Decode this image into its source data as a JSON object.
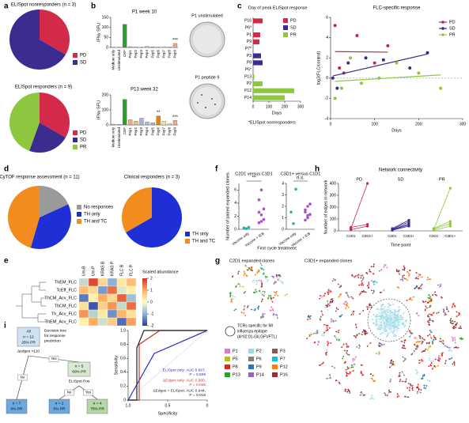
{
  "chart_data": [
    {
      "type": "pie",
      "panel": "a",
      "title": "ELISpot nonresponders (n = 3)",
      "categories": [
        "PD",
        "SD"
      ],
      "values": [
        1,
        2
      ],
      "colors": [
        "#d42a4a",
        "#3a2d8f"
      ]
    },
    {
      "type": "pie",
      "title": "ELISpot responders (n = 9)",
      "categories": [
        "PD",
        "SD",
        "PR"
      ],
      "values": [
        3,
        2,
        4
      ],
      "colors": [
        "#d42a4a",
        "#3a2d8f",
        "#8dc63f"
      ]
    },
    {
      "type": "bar",
      "panel": "b",
      "title": "P1 week 10",
      "ylabel": "IFNγ SFU",
      "categories": [
        "Medium only",
        "Unstimulated",
        "CEF",
        "Pep1",
        "Pep2",
        "Pep3",
        "Pep4",
        "Pep5",
        "Pep6",
        "Pep7",
        "Pep8",
        "Pep9"
      ],
      "values": [
        1,
        1,
        115,
        4,
        3,
        2,
        5,
        3,
        2,
        4,
        3,
        20
      ],
      "bar_colors": [
        "#bbbbbb",
        "#bbbbbb",
        "#2ca02c",
        "#f4a582",
        "#fddbc7",
        "#d1e5f0",
        "#92c5de",
        "#c2a5cf",
        "#a6dba0",
        "#fee08b",
        "#e0e0e0",
        "#f4a582"
      ],
      "ylim": [
        0,
        150
      ],
      "yticks": [
        0,
        50,
        100,
        150
      ],
      "annotations": [
        {
          "text": "***",
          "category": "Pep9"
        }
      ]
    },
    {
      "type": "bar",
      "title": "P13 week 32",
      "ylabel": "IFNγ SFU",
      "categories": [
        "Medium only",
        "Unstimulated",
        "CEF",
        "Pep1",
        "Pep2",
        "Pep3",
        "Pep4",
        "Pep5",
        "Pep6",
        "Pep7",
        "Pep8",
        "Pep9"
      ],
      "values": [
        5,
        4,
        170,
        35,
        25,
        45,
        20,
        15,
        60,
        25,
        10,
        30
      ],
      "bar_colors": [
        "#bbbbbb",
        "#bbbbbb",
        "#2ca02c",
        "#f4a582",
        "#fdb863",
        "#b2abd2",
        "#92c5de",
        "#c2a5cf",
        "#e08214",
        "#fee08b",
        "#e0e0e0",
        "#f4a582"
      ],
      "ylim": [
        0,
        200
      ],
      "yticks": [
        0,
        100,
        200
      ],
      "annotations": [
        {
          "text": "**",
          "category": "Pep6"
        },
        {
          "text": "***",
          "category": "Pep9"
        }
      ]
    },
    {
      "type": "hbar",
      "panel": "c",
      "title": "Day of peak ELISpot response",
      "categories": [
        "P16",
        "P6*",
        "P1",
        "P9",
        "P7*",
        "P3",
        "P8",
        "P5*",
        "P13",
        "P2",
        "P12",
        "P14"
      ],
      "values": [
        60,
        null,
        45,
        40,
        null,
        50,
        60,
        null,
        8,
        60,
        260,
        200
      ],
      "bar_colors": [
        "#d42a4a",
        "#d42a4a",
        "#d42a4a",
        "#d42a4a",
        "#3a2d8f",
        "#3a2d8f",
        "#3a2d8f",
        "#3a2d8f",
        "#8dc63f",
        "#8dc63f",
        "#8dc63f",
        "#8dc63f"
      ],
      "legend": [
        {
          "name": "PD",
          "color": "#d42a4a"
        },
        {
          "name": "SD",
          "color": "#3a2d8f"
        },
        {
          "name": "PR",
          "color": "#8dc63f"
        }
      ],
      "xlabel": "Days",
      "xlim": [
        0,
        300
      ],
      "xticks": [
        0,
        100,
        200,
        300
      ],
      "footnote": "*ELISpot nonresponders"
    },
    {
      "type": "scatter",
      "title": "FLC-specific response",
      "xlabel": "Days",
      "ylabel": "log2(FLC/control)",
      "xlim": [
        0,
        300
      ],
      "xticks": [
        0,
        100,
        200,
        300
      ],
      "ylim": [
        -4,
        6
      ],
      "yticks": [
        -4,
        -2,
        0,
        2,
        4,
        6
      ],
      "series": [
        {
          "name": "PD",
          "color": "#c0264a",
          "x": [
            10,
            20,
            30,
            60,
            100,
            130
          ],
          "values": [
            5.2,
            1,
            0.5,
            4.2,
            1.5,
            3.2
          ]
        },
        {
          "name": "SD",
          "color": "#3b2a8c",
          "x": [
            5,
            15,
            40,
            80,
            120,
            180,
            220
          ],
          "values": [
            0,
            -1,
            1.5,
            2,
            1.8,
            1,
            2.5
          ]
        },
        {
          "name": "PR",
          "color": "#8dc63f",
          "x": [
            10,
            25,
            45,
            70,
            110,
            150,
            200,
            250
          ],
          "values": [
            -2,
            -1,
            2,
            -0.5,
            0,
            1.5,
            0.5,
            -1
          ]
        }
      ]
    },
    {
      "type": "pie",
      "panel": "d",
      "title": "CyTOF response assessment (n = 11)",
      "categories": [
        "No responses",
        "TH only",
        "TH and TC"
      ],
      "values": [
        2,
        4,
        5
      ],
      "colors": [
        "#9a9a9a",
        "#1f2fd6",
        "#f28c1e"
      ]
    },
    {
      "type": "pie",
      "title": "Clinical responders (n = 3)",
      "categories": [
        "TH only",
        "TH and TC"
      ],
      "values": [
        2,
        1
      ],
      "colors": [
        "#1f2fd6",
        "#f28c1e"
      ]
    },
    {
      "type": "heatmap",
      "panel": "e",
      "rows": [
        "ThEM_FLC",
        "TcEff_FLC",
        "ThCM_Acv_FLC",
        "ThCM_FLC",
        "Th_Acv_FLC",
        "ThEM_Acv_FLC"
      ],
      "columns": [
        "Um B",
        "Um P",
        "KRAS B",
        "KRAS P",
        "FLC B",
        "FLC P"
      ],
      "values": [
        [
          -0.5,
          1.8,
          0.5,
          -1,
          0.3,
          0.8
        ],
        [
          0.8,
          0.5,
          -1.2,
          1.5,
          -0.3,
          0.2
        ],
        [
          -1.5,
          0.2,
          1,
          0.5,
          1.6,
          -0.8
        ],
        [
          0.4,
          -1.8,
          0.6,
          1.2,
          -0.5,
          1.5
        ],
        [
          1.2,
          -0.6,
          0.3,
          -1.3,
          0.9,
          0.4
        ],
        [
          0.2,
          1,
          -0.4,
          0.6,
          -1.6,
          1.1
        ]
      ],
      "zlim": [
        -2,
        2
      ],
      "zticks": [
        2,
        1,
        0,
        -1,
        -2
      ],
      "colorscale": [
        "#2c3e9e",
        "#8ab3d8",
        "#ffffbf",
        "#fdae61",
        "#d73027"
      ],
      "colorbar_label": "Scaled abundance"
    },
    {
      "type": "strip",
      "panel": "f",
      "title": "C2D1 versus C1D1",
      "ylabel": "Number of paired expanded clones",
      "xlabel": "First cycle treatment",
      "categories": [
        "Vaccine only",
        "Vaccine + ICB"
      ],
      "colors": [
        "#1fb5a5",
        "#b04fc4"
      ],
      "values": [
        [
          0.2,
          0.1,
          0.3
        ],
        [
          1,
          2.2,
          3.1,
          4.5,
          6,
          1.5,
          2.6,
          1.2
        ]
      ],
      "ylim": [
        0,
        7
      ],
      "yticks": [
        0,
        2,
        4,
        6
      ],
      "annotation": "**"
    },
    {
      "type": "strip",
      "title": "C3D1+ versus C1D1",
      "categories": [
        "Vaccine only",
        "Vaccine + ICB"
      ],
      "colors": [
        "#1fb5a5",
        "#b04fc4"
      ],
      "values": [
        [
          1.5,
          0.5,
          3.5
        ],
        [
          0.8,
          1,
          1.3,
          1.7,
          2,
          2.2,
          1.5,
          1.2
        ]
      ],
      "ylim": [
        0,
        4
      ],
      "yticks": [
        0,
        1,
        2,
        3,
        4
      ],
      "annotation": "n.s."
    },
    {
      "type": "paired",
      "panel": "h",
      "title": "Network connectivity",
      "ylabel": "Number of edges in network",
      "xlabel": "Time point",
      "categories": [
        "C2D1",
        "C3D1+"
      ],
      "ylim": [
        0,
        400
      ],
      "yticks": [
        0,
        100,
        200,
        300,
        400
      ],
      "series": [
        {
          "name": "PD",
          "color": "#c0264a",
          "values": [
            [
              20,
              400
            ],
            [
              10,
              40
            ],
            [
              30,
              55
            ]
          ]
        },
        {
          "name": "SD",
          "color": "#3b2a8c",
          "values": [
            [
              10,
              60
            ],
            [
              15,
              75
            ],
            [
              5,
              40
            ],
            [
              20,
              90
            ],
            [
              8,
              50
            ]
          ]
        },
        {
          "name": "PR",
          "color": "#8dc63f",
          "values": [
            [
              10,
              360
            ],
            [
              20,
              80
            ],
            [
              15,
              60
            ],
            [
              5,
              40
            ]
          ]
        }
      ]
    },
    {
      "type": "roc",
      "panel": "i",
      "xlabel": "Specificity",
      "ylabel": "Sensitivity",
      "xlim": [
        1,
        0
      ],
      "xticks": [
        {
          "value": 1,
          "label": "1.0"
        },
        0.5,
        0
      ],
      "ylim": [
        0,
        1
      ],
      "yticks": [
        0,
        0.2,
        0.4,
        0.6,
        0.8,
        {
          "value": 1,
          "label": "1.0"
        }
      ],
      "series": [
        {
          "name": "ELISpot only: AUC 0.667,",
          "p_label": "P = 0.509",
          "color": "#2a2ad0",
          "x": [
            1,
            0.67,
            0
          ],
          "values": [
            0,
            0.67,
            1
          ]
        },
        {
          "name": "ΔEdges only: AUC 0.880,",
          "p_label": "P = 0.045",
          "color": "#c0392b",
          "x": [
            1,
            0.86,
            0.86,
            0.6,
            0
          ],
          "values": [
            0,
            0,
            0.8,
            1,
            1
          ]
        },
        {
          "name": "ΔEdges + ELISpot: AUC 0.944,",
          "p_label": "P = 0.018",
          "color": "#222222",
          "x": [
            1,
            0.89,
            0.89,
            0.8,
            0
          ],
          "values": [
            0,
            0,
            0.75,
            1,
            1
          ]
        }
      ]
    }
  ],
  "panel_b_images": [
    "P1 unstimulated",
    "P1 peptide 9"
  ],
  "network": {
    "panel": "g",
    "titles": [
      "C2D1 expanded clones",
      "C3D1+ expanded clones"
    ],
    "note_lines": [
      "TCRs specific for MI",
      "influenza epitope",
      "(A*02:01-GILGFVFTL)"
    ],
    "patients": [
      {
        "name": "P1",
        "color": "#e377c2"
      },
      {
        "name": "P2",
        "color": "#9edae5"
      },
      {
        "name": "P3",
        "color": "#8c564b"
      },
      {
        "name": "P5",
        "color": "#bcbd22"
      },
      {
        "name": "P6",
        "color": "#7f7f7f"
      },
      {
        "name": "P7",
        "color": "#17becf"
      },
      {
        "name": "P8",
        "color": "#d62728"
      },
      {
        "name": "P9",
        "color": "#1f77b4"
      },
      {
        "name": "P12",
        "color": "#ff7f0e"
      },
      {
        "name": "P13",
        "color": "#2ca02c"
      },
      {
        "name": "P14",
        "color": "#9467bd"
      },
      {
        "name": "P16",
        "color": "#a0283c"
      }
    ]
  },
  "decision_tree": {
    "title_lines": [
      "Decision tree",
      "for response",
      "prediction"
    ],
    "nodes": [
      {
        "lines": [
          "All",
          "n = 12",
          "25% PR"
        ],
        "split": "Δedges >110"
      },
      {
        "lines": [
          "n = 7",
          "0% PR"
        ]
      },
      {
        "lines": [
          "n = 5",
          "60% PR"
        ],
        "split": "ELISpot Pos"
      },
      {
        "lines": [
          "n = 1",
          "0% PR"
        ]
      },
      {
        "lines": [
          "n = 4",
          "75% PR"
        ]
      }
    ],
    "edges": [
      {
        "label": "No"
      },
      {
        "label": "Yes"
      },
      {
        "label": "No"
      },
      {
        "label": "Yes"
      }
    ]
  }
}
